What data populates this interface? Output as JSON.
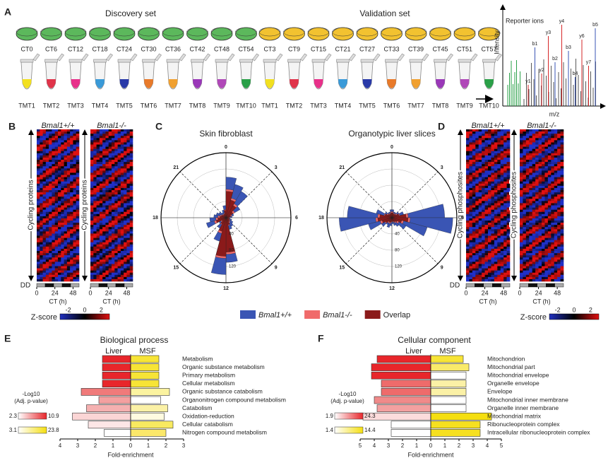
{
  "A": {
    "label": "A",
    "discovery_title": "Discovery set",
    "validation_title": "Validation set",
    "discovery_ct": [
      "CT0",
      "CT6",
      "CT12",
      "CT18",
      "CT24",
      "CT30",
      "CT36",
      "CT42",
      "CT48",
      "CT54"
    ],
    "validation_ct": [
      "CT3",
      "CT9",
      "CT15",
      "CT21",
      "CT27",
      "CT33",
      "CT39",
      "CT45",
      "CT51",
      "CT57"
    ],
    "tmt": [
      "TMT1",
      "TMT2",
      "TMT3",
      "TMT4",
      "TMT5",
      "TMT6",
      "TMT7",
      "TMT8",
      "TMT9",
      "TMT10"
    ],
    "ms": {
      "reporter": "Reporter ions",
      "ylabel": "Intensity",
      "xlabel": "m/z",
      "peaks": [
        {
          "label": "y1",
          "color": "#d62728"
        },
        {
          "label": "b1",
          "color": "#3a55b4"
        },
        {
          "label": "y2",
          "color": "#d62728"
        },
        {
          "label": "y3",
          "color": "#d62728"
        },
        {
          "label": "b2",
          "color": "#3a55b4"
        },
        {
          "label": "y4",
          "color": "#d62728"
        },
        {
          "label": "b3",
          "color": "#3a55b4"
        },
        {
          "label": "b4",
          "color": "#3a55b4"
        },
        {
          "label": "y6",
          "color": "#d62728"
        },
        {
          "label": "y7",
          "color": "#d62728"
        },
        {
          "label": "b5",
          "color": "#3a55b4"
        }
      ]
    }
  },
  "B": {
    "label": "B",
    "genotypes": [
      "Bmal1+/+",
      "Bmal1-/-"
    ],
    "ylabel": "Cycling proteins",
    "dd": "DD",
    "xlabel": "CT (h)",
    "xticks": [
      0,
      24,
      48
    ],
    "xlim": [
      0,
      56
    ],
    "zscore": "Z-score",
    "zticks": [
      -2,
      0,
      2
    ],
    "zlim": [
      -3,
      3
    ]
  },
  "C": {
    "label": "C",
    "titles": [
      "Skin fibroblast",
      "Organotypic liver slices"
    ],
    "hours": [
      0,
      3,
      6,
      9,
      12,
      15,
      18,
      21
    ],
    "rings": [
      40,
      80,
      120
    ],
    "rmax": 160,
    "legend": [
      {
        "name": "Bmal1+/+",
        "color": "#3a55b4"
      },
      {
        "name": "Bmal1-/-",
        "color": "#f06a6a"
      },
      {
        "name": "Overlap",
        "color": "#8b1a1a"
      }
    ],
    "roses": [
      {
        "wt": [
          100,
          85,
          75,
          40,
          20,
          15,
          10,
          15,
          20,
          25,
          30,
          110,
          140,
          60,
          30,
          20,
          50,
          40,
          30,
          25,
          20,
          15,
          20,
          30
        ],
        "ko": [
          70,
          50,
          40,
          25,
          15,
          10,
          8,
          10,
          12,
          15,
          20,
          90,
          100,
          40,
          20,
          15,
          30,
          25,
          20,
          15,
          12,
          10,
          12,
          20
        ],
        "overlap": [
          65,
          45,
          35,
          20,
          12,
          8,
          6,
          8,
          10,
          12,
          18,
          85,
          95,
          35,
          18,
          12,
          25,
          20,
          15,
          12,
          10,
          8,
          10,
          18
        ]
      },
      {
        "wt": [
          20,
          15,
          15,
          20,
          30,
          130,
          150,
          90,
          40,
          25,
          20,
          15,
          20,
          25,
          20,
          30,
          60,
          130,
          110,
          40,
          20,
          15,
          15,
          20
        ],
        "ko": [
          15,
          12,
          12,
          15,
          20,
          40,
          45,
          30,
          20,
          15,
          12,
          10,
          12,
          15,
          15,
          20,
          30,
          40,
          35,
          20,
          15,
          12,
          12,
          15
        ],
        "overlap": [
          12,
          10,
          10,
          12,
          18,
          35,
          40,
          25,
          15,
          12,
          10,
          8,
          10,
          12,
          12,
          18,
          25,
          35,
          30,
          18,
          12,
          10,
          10,
          12
        ]
      }
    ]
  },
  "D": {
    "label": "D",
    "genotypes": [
      "Bmal1+/+",
      "Bmal1-/-"
    ],
    "ylabel": "Cycling phosphosites",
    "dd": "DD",
    "xlabel": "CT (h)",
    "xticks": [
      0,
      24,
      48
    ],
    "xlim": [
      0,
      56
    ],
    "zscore": "Z-score",
    "zticks": [
      -2,
      0,
      2
    ],
    "zlim": [
      -3,
      3
    ]
  },
  "E": {
    "label": "E",
    "title": "Biological process",
    "columns": [
      "Liver",
      "MSF"
    ],
    "terms": [
      "Metabolism",
      "Organic substance metabolism",
      "Primary metabolism",
      "Cellular metabolism",
      "Organic substance catabolism",
      "Organonitrogen compound metabolism",
      "Catabolism",
      "Oxidation-reduction",
      "Cellular catabolism",
      "Nitrogen compound metabolism"
    ],
    "term_colors": [
      "#222",
      "#222",
      "#222",
      "#222",
      "#222",
      "#222",
      "#222",
      "#222",
      "#222",
      "#222"
    ],
    "liver": [
      1.6,
      1.6,
      1.6,
      1.6,
      2.8,
      1.8,
      2.5,
      3.3,
      2.4,
      1.5
    ],
    "msf": [
      1.6,
      1.6,
      1.6,
      1.6,
      2.2,
      1.7,
      2.1,
      1.9,
      2.4,
      2.0
    ],
    "liver_colors": [
      "#e8262b",
      "#e8262b",
      "#e8262b",
      "#e8262b",
      "#f07a7a",
      "#f4a0a0",
      "#f5b0b0",
      "#fbd5d5",
      "#fde6e6",
      "#ffffff"
    ],
    "msf_colors": [
      "#f7e436",
      "#f7e436",
      "#f7e436",
      "#f7e436",
      "#fbf3a0",
      "#ffffff",
      "#fbf1a6",
      "#fffbe0",
      "#f8ea60",
      "#fbe86a"
    ],
    "xlim": [
      -4,
      3
    ],
    "ticks": [
      {
        "value": -4,
        "label": "4"
      },
      {
        "value": -3,
        "label": "3"
      },
      {
        "value": -2,
        "label": "2"
      },
      {
        "value": -1,
        "label": "1"
      },
      0,
      1,
      2,
      3
    ],
    "xlabel": "Fold-enrichment",
    "scale_title": [
      "-Log10",
      "(Adj. p-value)"
    ],
    "liver_scale": [
      2.3,
      10.9
    ],
    "msf_scale": [
      3.1,
      23.8
    ]
  },
  "F": {
    "label": "F",
    "title": "Cellular component",
    "columns": [
      "Liver",
      "MSF"
    ],
    "terms": [
      "Mitochondrion",
      "Mitochondrial part",
      "Mitochondrial envelope",
      "Organelle envelope",
      "Envelope",
      "Mitochondrial inner membrane",
      "Organelle inner membrane",
      "Mitochondrial matrix",
      "Ribonucleoprotein complex",
      "Intracellular ribonucleoprotein complex"
    ],
    "term_colors": [
      "#2b3fa8",
      "#2b3fa8",
      "#2b3fa8",
      "#222",
      "#222",
      "#2b3fa8",
      "#222",
      "#2b3fa8",
      "#222",
      "#222"
    ],
    "liver": [
      3.8,
      4.2,
      4.2,
      3.5,
      3.5,
      4.0,
      3.8,
      4.8,
      2.8,
      2.8
    ],
    "msf": [
      2.3,
      2.7,
      2.5,
      2.5,
      2.5,
      2.5,
      2.5,
      4.3,
      3.5,
      3.5
    ],
    "liver_colors": [
      "#e8262b",
      "#e8262b",
      "#e8262b",
      "#ee6b6b",
      "#ee6b6b",
      "#f08a8a",
      "#f3a0a0",
      "#fcdcdc",
      "#ffffff",
      "#ffffff"
    ],
    "msf_colors": [
      "#f7e436",
      "#f9ea6a",
      "#ffffff",
      "#fbf1a6",
      "#fbf1a6",
      "#ffffff",
      "#ffffff",
      "#f5df10",
      "#f6e020",
      "#f6e020"
    ],
    "xlim": [
      -5,
      5
    ],
    "ticks": [
      {
        "value": -5,
        "label": "5"
      },
      {
        "value": -4,
        "label": "4"
      },
      {
        "value": -3,
        "label": "3"
      },
      {
        "value": -2,
        "label": "2"
      },
      {
        "value": -1,
        "label": "1"
      },
      0,
      1,
      2,
      3,
      4,
      5
    ],
    "xlabel": "Fold-enrichment",
    "scale_title": [
      "-Log10",
      "(Adj. p-value)"
    ],
    "liver_scale": [
      1.9,
      24.3
    ],
    "msf_scale": [
      1.4,
      14.4
    ]
  }
}
